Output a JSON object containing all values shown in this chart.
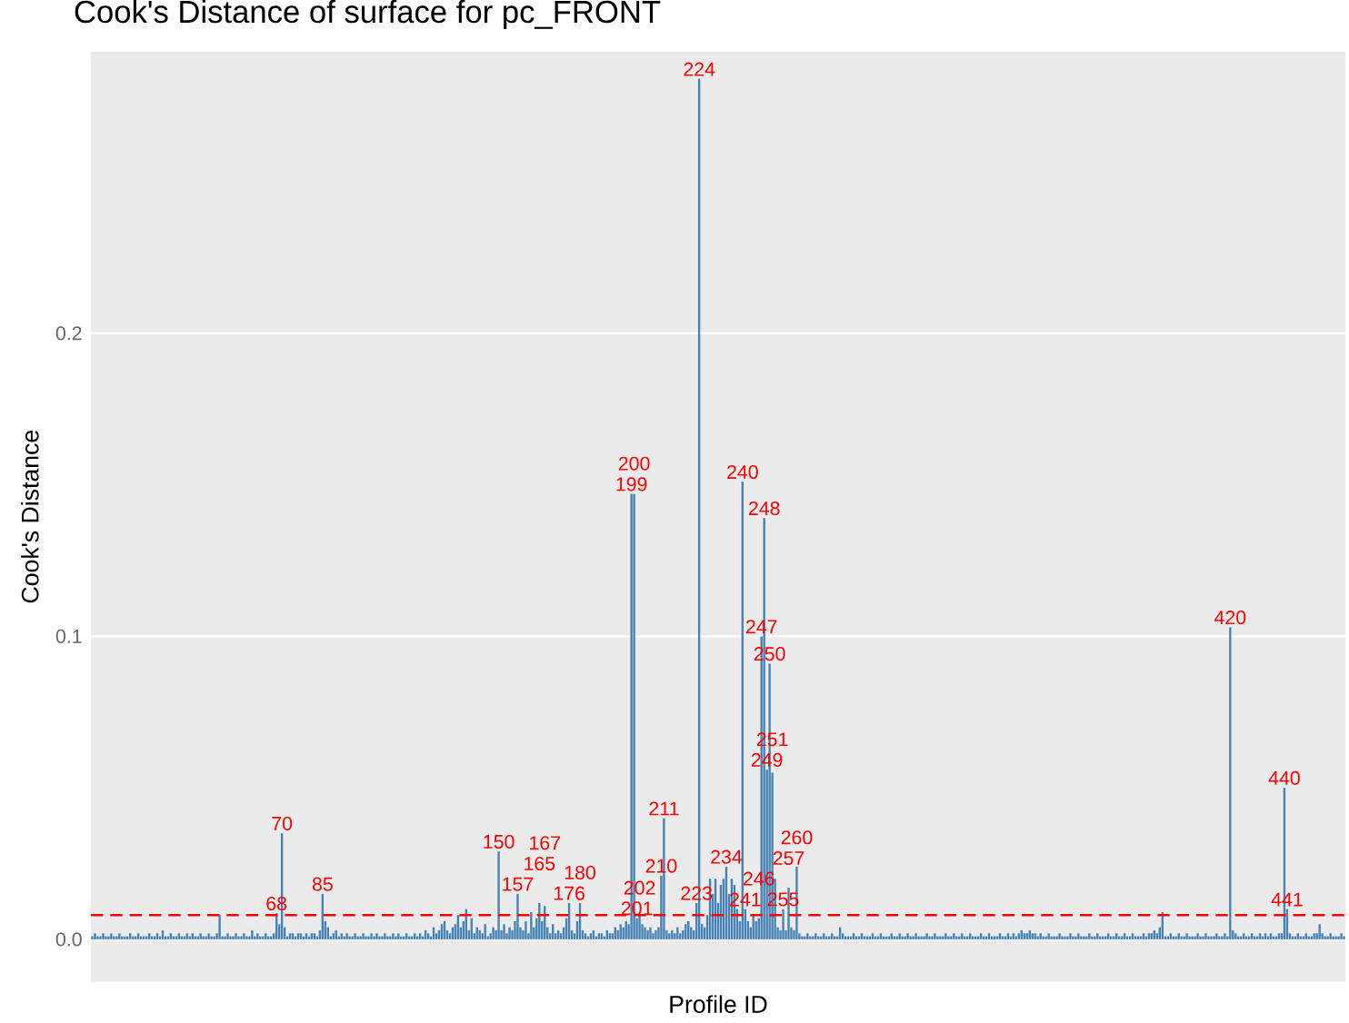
{
  "chart_data": {
    "type": "bar",
    "title": "Cook's Distance of  surface for pc_FRONT",
    "xlabel": "Profile ID",
    "ylabel": "Cook's Distance",
    "categories": [
      null,
      null,
      null,
      null,
      null,
      null,
      null,
      null,
      null,
      null,
      null,
      null,
      null,
      null,
      null,
      null,
      null,
      null,
      null,
      null,
      null,
      null,
      null,
      null,
      null,
      null,
      null,
      null,
      null,
      null,
      null,
      null,
      null,
      null,
      null,
      null,
      null,
      null,
      null,
      null,
      null,
      null,
      null,
      null,
      null,
      null,
      null,
      null,
      null,
      null,
      null,
      null,
      null,
      null,
      null,
      null,
      null,
      null,
      null,
      null,
      null,
      null,
      null,
      null,
      null,
      null,
      null,
      null,
      "68",
      null,
      "70",
      null,
      null,
      null,
      null,
      null,
      null,
      null,
      null,
      null,
      null,
      null,
      null,
      null,
      null,
      "85",
      null,
      null,
      null,
      null,
      null,
      null,
      null,
      null,
      null,
      null,
      null,
      null,
      null,
      null,
      null,
      null,
      null,
      null,
      null,
      null,
      null,
      null,
      null,
      null,
      null,
      null,
      null,
      null,
      null,
      null,
      null,
      null,
      null,
      null,
      null,
      null,
      null,
      null,
      null,
      null,
      null,
      null,
      null,
      null,
      null,
      null,
      null,
      null,
      null,
      null,
      null,
      null,
      null,
      null,
      null,
      null,
      null,
      null,
      null,
      null,
      null,
      null,
      null,
      null,
      "150",
      null,
      null,
      null,
      null,
      null,
      null,
      "157",
      null,
      null,
      null,
      null,
      null,
      null,
      null,
      "165",
      null,
      "167",
      null,
      null,
      null,
      null,
      null,
      null,
      null,
      null,
      "176",
      null,
      null,
      null,
      "180",
      null,
      null,
      null,
      null,
      null,
      null,
      null,
      null,
      null,
      null,
      null,
      null,
      null,
      null,
      null,
      null,
      null,
      null,
      "199",
      "200",
      "201",
      "202",
      null,
      null,
      null,
      null,
      null,
      null,
      null,
      "210",
      "211",
      null,
      null,
      null,
      null,
      null,
      null,
      null,
      null,
      null,
      null,
      null,
      "223",
      "224",
      null,
      null,
      null,
      null,
      null,
      null,
      null,
      null,
      null,
      "234",
      null,
      null,
      null,
      null,
      null,
      "240",
      "241",
      null,
      null,
      null,
      null,
      "246",
      "247",
      "248",
      "249",
      "250",
      "251",
      null,
      null,
      null,
      "255",
      null,
      "257",
      null,
      null,
      "260",
      null,
      null,
      null,
      null,
      null,
      null,
      null,
      null,
      null,
      null,
      null,
      null,
      null,
      null,
      null,
      null,
      null,
      null,
      null,
      null,
      null,
      null,
      null,
      null,
      null,
      null,
      null,
      null,
      null,
      null,
      null,
      null,
      null,
      null,
      null,
      null,
      null,
      null,
      null,
      null,
      null,
      null,
      null,
      null,
      null,
      null,
      null,
      null,
      null,
      null,
      null,
      null,
      null,
      null,
      null,
      null,
      null,
      null,
      null,
      null,
      null,
      null,
      null,
      null,
      null,
      null,
      null,
      null,
      null,
      null,
      null,
      null,
      null,
      null,
      null,
      null,
      null,
      null,
      null,
      null,
      null,
      null,
      null,
      null,
      null,
      null,
      null,
      null,
      null,
      null,
      null,
      null,
      null,
      null,
      null,
      null,
      null,
      null,
      null,
      null,
      null,
      null,
      null,
      null,
      null,
      null,
      null,
      null,
      null,
      null,
      null,
      null,
      null,
      null,
      null,
      null,
      null,
      null,
      null,
      null,
      null,
      null,
      null,
      null,
      null,
      null,
      null,
      null,
      null,
      null,
      null,
      null,
      null,
      null,
      null,
      null,
      null,
      null,
      null,
      null,
      null,
      null,
      null,
      null,
      null,
      null,
      null,
      null,
      null,
      null,
      null,
      null,
      null,
      null,
      null,
      null,
      null,
      null,
      null,
      "420",
      null,
      null,
      null,
      null,
      null,
      null,
      null,
      null,
      null,
      null,
      null,
      null,
      null,
      null,
      null,
      null,
      null,
      null,
      null,
      "440",
      "441",
      null,
      null,
      null,
      null,
      null,
      null,
      null,
      null,
      null,
      null,
      null,
      null,
      null,
      null,
      null,
      null,
      null,
      null,
      null,
      null,
      null
    ],
    "values": [
      0.001,
      0.002,
      0.001,
      0.001,
      0.002,
      0.001,
      0.001,
      0.002,
      0.001,
      0.001,
      0.002,
      0.001,
      0.001,
      0.001,
      0.002,
      0.001,
      0.001,
      0.002,
      0.001,
      0.001,
      0.001,
      0.002,
      0.001,
      0.001,
      0.002,
      0.001,
      0.003,
      0.001,
      0.001,
      0.002,
      0.001,
      0.001,
      0.002,
      0.001,
      0.001,
      0.002,
      0.001,
      0.002,
      0.001,
      0.001,
      0.002,
      0.001,
      0.001,
      0.002,
      0.001,
      0.001,
      0.002,
      0.008,
      0.001,
      0.001,
      0.002,
      0.001,
      0.001,
      0.002,
      0.001,
      0.001,
      0.002,
      0.001,
      0.001,
      0.003,
      0.001,
      0.002,
      0.001,
      0.001,
      0.002,
      0.001,
      0.001,
      0.002,
      0.0086,
      0.005,
      0.035,
      0.004,
      0.001,
      0.002,
      0.002,
      0.001,
      0.002,
      0.002,
      0.001,
      0.002,
      0.001,
      0.002,
      0.002,
      0.001,
      0.003,
      0.015,
      0.006,
      0.004,
      0.001,
      0.002,
      0.003,
      0.001,
      0.002,
      0.001,
      0.002,
      0.001,
      0.001,
      0.002,
      0.001,
      0.001,
      0.002,
      0.001,
      0.001,
      0.002,
      0.001,
      0.002,
      0.001,
      0.001,
      0.002,
      0.001,
      0.001,
      0.002,
      0.001,
      0.002,
      0.001,
      0.001,
      0.002,
      0.001,
      0.001,
      0.002,
      0.001,
      0.002,
      0.001,
      0.003,
      0.002,
      0.001,
      0.004,
      0.002,
      0.003,
      0.005,
      0.006,
      0.003,
      0.002,
      0.004,
      0.005,
      0.008,
      0.004,
      0.006,
      0.01,
      0.003,
      0.007,
      0.002,
      0.004,
      0.003,
      0.002,
      0.005,
      0.001,
      0.002,
      0.004,
      0.003,
      0.029,
      0.003,
      0.005,
      0.002,
      0.004,
      0.003,
      0.006,
      0.015,
      0.004,
      0.003,
      0.006,
      0.002,
      0.009,
      0.004,
      0.007,
      0.012,
      0.006,
      0.011,
      0.004,
      0.002,
      0.005,
      0.002,
      0.003,
      0.002,
      0.004,
      0.007,
      0.012,
      0.003,
      0.002,
      0.006,
      0.012,
      0.003,
      0.002,
      0.001,
      0.002,
      0.003,
      0.001,
      0.002,
      0.002,
      0.001,
      0.003,
      0.002,
      0.002,
      0.004,
      0.003,
      0.005,
      0.004,
      0.006,
      0.005,
      0.147,
      0.147,
      0.007,
      0.008,
      0.005,
      0.004,
      0.003,
      0.004,
      0.002,
      0.003,
      0.004,
      0.021,
      0.04,
      0.003,
      0.002,
      0.003,
      0.002,
      0.004,
      0.002,
      0.003,
      0.005,
      0.006,
      0.004,
      0.003,
      0.012,
      0.284,
      0.005,
      0.004,
      0.008,
      0.02,
      0.015,
      0.02,
      0.012,
      0.018,
      0.02,
      0.024,
      0.015,
      0.02,
      0.018,
      0.01,
      0.006,
      0.151,
      0.01,
      0.006,
      0.004,
      0.008,
      0.006,
      0.007,
      0.1,
      0.139,
      0.056,
      0.091,
      0.055,
      0.02,
      0.004,
      0.003,
      0.01,
      0.003,
      0.017,
      0.004,
      0.003,
      0.024,
      0.002,
      0.001,
      0.001,
      0.002,
      0.001,
      0.001,
      0.002,
      0.001,
      0.001,
      0.002,
      0.001,
      0.001,
      0.002,
      0.001,
      0.001,
      0.004,
      0.002,
      0.001,
      0.001,
      0.001,
      0.002,
      0.001,
      0.001,
      0.002,
      0.001,
      0.001,
      0.001,
      0.002,
      0.001,
      0.001,
      0.002,
      0.001,
      0.001,
      0.001,
      0.002,
      0.001,
      0.001,
      0.002,
      0.001,
      0.001,
      0.002,
      0.001,
      0.001,
      0.002,
      0.001,
      0.001,
      0.001,
      0.002,
      0.001,
      0.001,
      0.002,
      0.001,
      0.001,
      0.001,
      0.002,
      0.001,
      0.001,
      0.002,
      0.001,
      0.001,
      0.002,
      0.001,
      0.001,
      0.002,
      0.001,
      0.001,
      0.001,
      0.002,
      0.001,
      0.001,
      0.002,
      0.001,
      0.001,
      0.001,
      0.002,
      0.001,
      0.001,
      0.002,
      0.001,
      0.002,
      0.001,
      0.002,
      0.003,
      0.002,
      0.002,
      0.003,
      0.002,
      0.002,
      0.001,
      0.002,
      0.001,
      0.001,
      0.002,
      0.001,
      0.001,
      0.001,
      0.002,
      0.001,
      0.001,
      0.001,
      0.002,
      0.001,
      0.001,
      0.002,
      0.001,
      0.001,
      0.001,
      0.002,
      0.001,
      0.001,
      0.002,
      0.001,
      0.001,
      0.001,
      0.002,
      0.001,
      0.001,
      0.002,
      0.001,
      0.001,
      0.002,
      0.001,
      0.001,
      0.002,
      0.001,
      0.001,
      0.001,
      0.002,
      0.001,
      0.002,
      0.002,
      0.003,
      0.002,
      0.004,
      0.009,
      0.001,
      0.001,
      0.002,
      0.001,
      0.001,
      0.002,
      0.001,
      0.001,
      0.002,
      0.001,
      0.001,
      0.001,
      0.002,
      0.001,
      0.001,
      0.002,
      0.001,
      0.001,
      0.001,
      0.002,
      0.001,
      0.001,
      0.002,
      0.001,
      0.103,
      0.003,
      0.002,
      0.001,
      0.001,
      0.002,
      0.001,
      0.001,
      0.002,
      0.001,
      0.001,
      0.002,
      0.001,
      0.002,
      0.001,
      0.002,
      0.001,
      0.001,
      0.002,
      0.002,
      0.05,
      0.01,
      0.002,
      0.001,
      0.001,
      0.002,
      0.001,
      0.001,
      0.002,
      0.001,
      0.001,
      0.002,
      0.002,
      0.005,
      0.002,
      0.001,
      0.001,
      0.002,
      0.001,
      0.001,
      0.001,
      0.002,
      0.001
    ],
    "color": "#4682b4",
    "ylim": [
      -0.014,
      0.293
    ],
    "yticks": [
      {
        "value": 0,
        "label": "0.0"
      },
      {
        "value": 0.1,
        "label": "0.1"
      },
      {
        "value": 0.2,
        "label": "0.2"
      }
    ],
    "tick_labels": "y",
    "grid": "y",
    "ref_lines": [
      {
        "axis": "y",
        "value": 0.008,
        "color": "#ff0000",
        "line_style": "dashed"
      }
    ]
  }
}
